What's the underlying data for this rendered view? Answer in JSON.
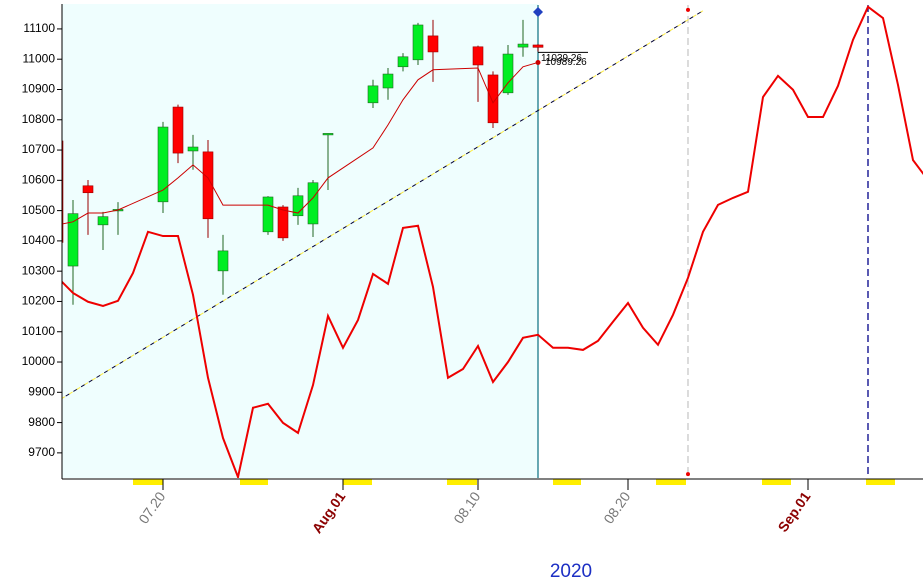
{
  "chart_data": {
    "type": "candlestick",
    "xlabel": "2020",
    "ylim": [
      9617,
      11179
    ],
    "yticks": [
      9700,
      9800,
      9900,
      10000,
      10100,
      10200,
      10300,
      10400,
      10500,
      10600,
      10700,
      10800,
      10900,
      11000,
      11100
    ],
    "xticks": [
      "07.20",
      {
        "value": "08.01",
        "label": "Aug.01"
      },
      "08.10",
      "08.20",
      {
        "value": "09.01",
        "label": "Sep.01"
      }
    ],
    "shaded": {
      "x": [
        "07.13",
        "08.14"
      ],
      "color": "#effefe"
    },
    "candles": {
      "x": [
        "07.13",
        "07.14",
        "07.15",
        "07.16",
        "07.17",
        "07.20",
        "07.21",
        "07.22",
        "07.23",
        "07.24",
        "07.27",
        "07.28",
        "07.29",
        "07.30",
        "07.31",
        "08.03",
        "08.04",
        "08.05",
        "08.06",
        "08.07",
        "08.10",
        "08.11",
        "08.12",
        "08.13",
        "08.14"
      ],
      "open": [
        10730,
        10317,
        10582,
        10453,
        10500,
        10529,
        10842,
        10697,
        10694,
        10301,
        10430,
        10512,
        10483,
        10456,
        10750,
        10856,
        10905,
        10975,
        10998,
        11077,
        11041,
        10948,
        10889,
        11040,
        11047
      ],
      "high": [
        10826,
        10535,
        10601,
        10496,
        10528,
        10793,
        10850,
        10750,
        10733,
        10420,
        10548,
        10518,
        10575,
        10601,
        10755,
        10932,
        10971,
        11020,
        11120,
        11130,
        11045,
        10960,
        11047,
        11130,
        11050
      ],
      "low": [
        10390,
        10189,
        10420,
        10370,
        10420,
        10492,
        10657,
        10635,
        10410,
        10222,
        10420,
        10400,
        10453,
        10413,
        10568,
        10839,
        10866,
        10960,
        10981,
        10925,
        10859,
        10773,
        10882,
        11008,
        11025
      ],
      "close": [
        10395,
        10490,
        10559,
        10480,
        10504,
        10776,
        10690,
        10710,
        10473,
        10367,
        10545,
        10410,
        10549,
        10592,
        10755,
        10912,
        10951,
        11008,
        11113,
        11024,
        10981,
        10790,
        11017,
        11050,
        11039.26
      ],
      "up_color": "#00ee22",
      "down_color": "#ff0000"
    },
    "series": [
      {
        "color": "#cc0000",
        "width": 1,
        "x": [
          "07.13",
          "07.14",
          "07.15",
          "07.16",
          "07.17",
          "07.20",
          "07.21",
          "07.22",
          "07.23",
          "07.24",
          "07.27",
          "07.28",
          "07.29",
          "07.30",
          "07.31",
          "08.03",
          "08.04",
          "08.05",
          "08.06",
          "08.07",
          "08.10",
          "08.11",
          "08.12",
          "08.13",
          "08.14"
        ],
        "values": [
          10453,
          10463,
          10492,
          10492,
          10502,
          10568,
          10608,
          10651,
          10608,
          10518,
          10518,
          10502,
          10492,
          10542,
          10608,
          10707,
          10783,
          10866,
          10932,
          10965,
          10971,
          10856,
          10922,
          10975,
          10989.26
        ]
      },
      {
        "color": "#ee0000",
        "width": 2,
        "x": [
          "07.13",
          "07.14",
          "07.15",
          "07.16",
          "07.17",
          "07.18",
          "07.19",
          "07.20",
          "07.21",
          "07.22",
          "07.23",
          "07.24",
          "07.25",
          "07.26",
          "07.27",
          "07.28",
          "07.29",
          "07.30",
          "07.31",
          "08.01",
          "08.02",
          "08.03",
          "08.04",
          "08.05",
          "08.06",
          "08.07",
          "08.08",
          "08.09",
          "08.10",
          "08.11",
          "08.12",
          "08.13",
          "08.14",
          "08.15",
          "08.16",
          "08.17",
          "08.18",
          "08.19",
          "08.20",
          "08.21",
          "08.22",
          "08.23",
          "08.24",
          "08.25",
          "08.26",
          "08.27",
          "08.28",
          "08.29",
          "08.30",
          "08.31",
          "09.01",
          "09.02",
          "09.03",
          "09.04",
          "09.05",
          "09.06",
          "09.07",
          "09.08",
          "09.09"
        ],
        "values": [
          10278,
          10228,
          10199,
          10185,
          10202,
          10294,
          10430,
          10416,
          10416,
          10222,
          9948,
          9749,
          9620,
          9849,
          9862,
          9799,
          9766,
          9924,
          10152,
          10047,
          10139,
          10291,
          10258,
          10443,
          10450,
          10248,
          9948,
          9977,
          10053,
          9934,
          10000,
          10080,
          10090,
          10047,
          10047,
          10040,
          10070,
          10133,
          10195,
          10113,
          10057,
          10156,
          10278,
          10430,
          10519,
          10542,
          10562,
          10875,
          10945,
          10899,
          10809,
          10809,
          10912,
          11064,
          11173,
          11136,
          10915,
          10667,
          10601
        ]
      }
    ],
    "trendline": {
      "x": [
        "07.13",
        "08.25"
      ],
      "values": [
        9872,
        11160
      ]
    },
    "vlines": [
      {
        "x": "08.14",
        "color": "#1a7a8a",
        "dash": false
      },
      {
        "x": "08.24",
        "color": "#c8c8c8",
        "dash": true
      },
      {
        "x": "09.05",
        "color": "#000088",
        "dash": true
      }
    ],
    "markers": [
      {
        "x": "08.14",
        "value": 11156,
        "color": "#2040c0",
        "shape": "diamond"
      },
      {
        "x": "08.24",
        "value": 11163,
        "color": "#ee0000",
        "shape": "dot"
      },
      {
        "x": "08.24",
        "value": 9630,
        "color": "#ee0000",
        "shape": "dot"
      }
    ]
  }
}
